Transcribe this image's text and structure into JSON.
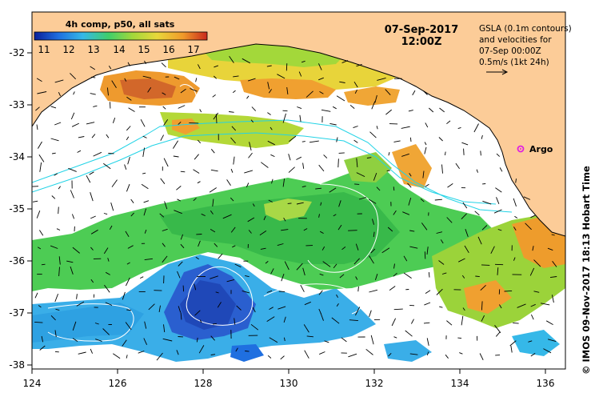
{
  "map": {
    "colorbar": {
      "title": "4h comp, p50, all sats",
      "ticks": [
        "11",
        "12",
        "13",
        "14",
        "15",
        "16",
        "17"
      ],
      "colors": [
        "#0a1f9a",
        "#1f6fe0",
        "#35b8e8",
        "#3fcf6a",
        "#a3d83a",
        "#e8d83a",
        "#f09a2a",
        "#c8281c"
      ]
    },
    "date": "07-Sep-2017",
    "time": "12:00Z",
    "legend_lines": [
      "GSLA (0.1m contours)",
      "and velocities for",
      "07-Sep 00:00Z",
      "0.5m/s (1kt 24h)"
    ],
    "argo_label": "Argo",
    "credit": "© IMOS 09-Nov-2017 18:13 Hobart Time",
    "x_ticks": [
      "124",
      "126",
      "128",
      "130",
      "132",
      "134",
      "136"
    ],
    "y_ticks": [
      "-32",
      "-33",
      "-34",
      "-35",
      "-36",
      "-37",
      "-38"
    ],
    "land_color": "#fccc98",
    "current_color": "#22d3e6",
    "contour_color": "#ffffff"
  }
}
